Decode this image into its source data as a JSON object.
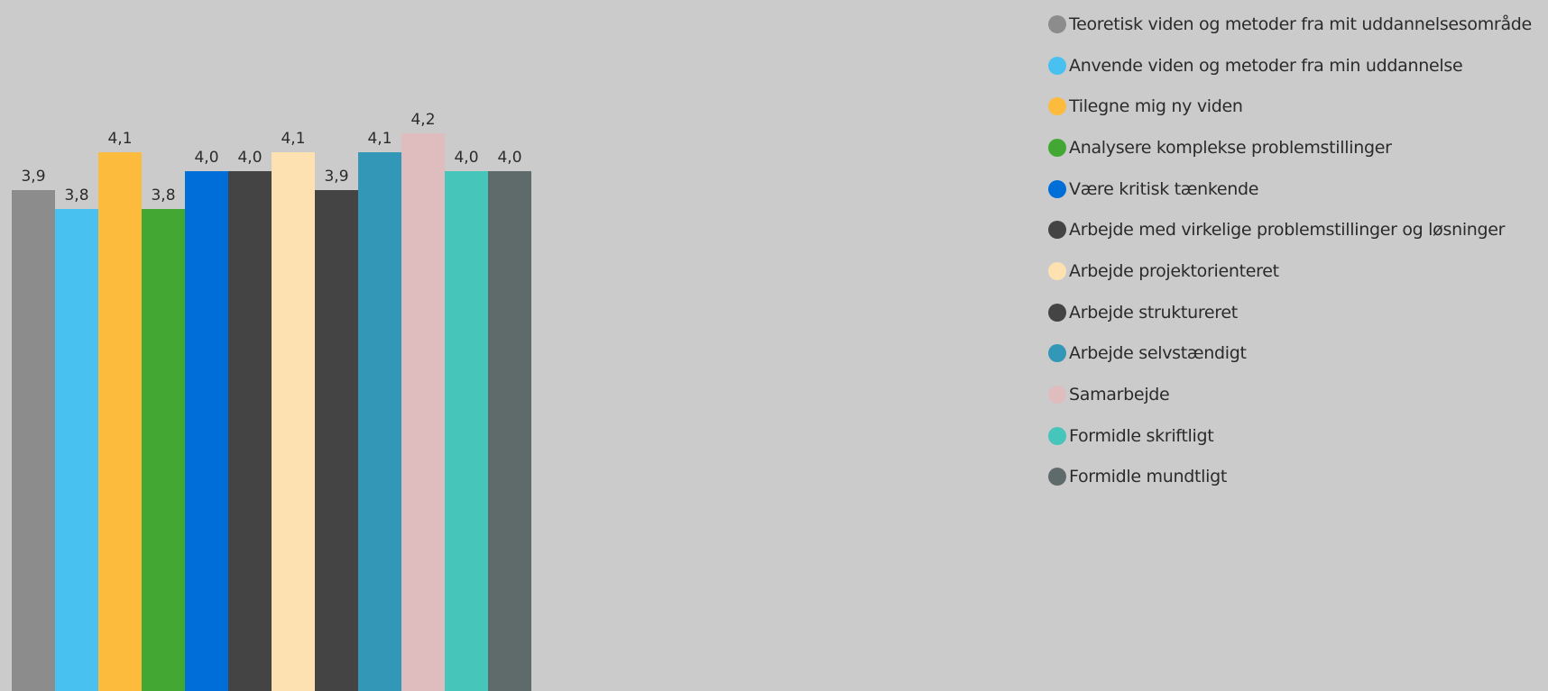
{
  "chart_data": {
    "type": "bar",
    "categories": [
      "Teoretisk viden og metoder fra mit uddannelsesområde",
      "Anvende viden og metoder fra min uddannelse",
      "Tilegne mig ny viden",
      "Analysere komplekse problemstillinger",
      "Være kritisk tænkende",
      "Arbejde med virkelige problemstillinger og løsninger",
      "Arbejde projektorienteret",
      "Arbejde struktureret",
      "Arbejde selvstændigt",
      "Samarbejde",
      "Formidle skriftligt",
      "Formidle mundtligt"
    ],
    "values": [
      3.9,
      3.8,
      4.1,
      3.8,
      4.0,
      4.0,
      4.1,
      3.9,
      4.1,
      4.2,
      4.0,
      4.0
    ],
    "data_labels": [
      "3,9",
      "3,8",
      "4,1",
      "3,8",
      "4,0",
      "4,0",
      "4,1",
      "3,9",
      "4,1",
      "4,2",
      "4,0",
      "4,0"
    ],
    "colors": [
      "#8c8c8c",
      "#48c1f1",
      "#fdbb3e",
      "#43a833",
      "#006ed8",
      "#444444",
      "#fde1b0",
      "#444444",
      "#3398b7",
      "#dfbdbf",
      "#46c5bb",
      "#5f6b6b"
    ],
    "legend_position": "right",
    "grid": false
  }
}
